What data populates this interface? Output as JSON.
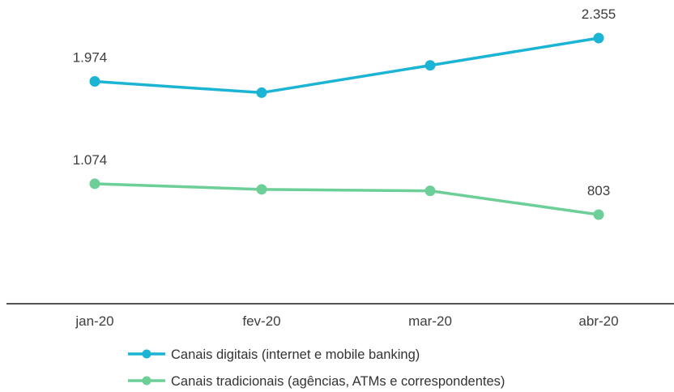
{
  "chart_data": {
    "type": "line",
    "categories": [
      "jan-20",
      "fev-20",
      "mar-20",
      "abr-20"
    ],
    "series": [
      {
        "name": "Canais digitais (internet e mobile banking)",
        "color": "#1cb4d4",
        "values": [
          1974,
          1875,
          2115,
          2355
        ],
        "labels": [
          "1.974",
          "",
          "",
          "2.355"
        ]
      },
      {
        "name": "Canais tradicionais (agências, ATMs e correspondentes)",
        "color": "#6ccf97",
        "values": [
          1074,
          1025,
          1012,
          803
        ],
        "labels": [
          "1.074",
          "",
          "",
          "803"
        ]
      }
    ],
    "axis_color": "#555555",
    "legend_position": "bottom",
    "grid": false
  }
}
